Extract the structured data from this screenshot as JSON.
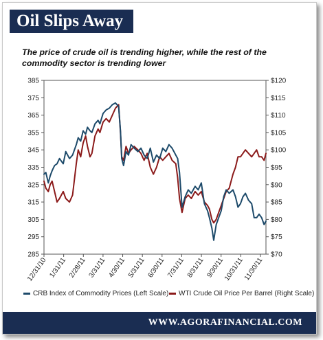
{
  "header": {
    "title": "Oil Slips Away"
  },
  "subtitle": "The price of crude oil is trending higher, while the rest of the commodity sector is trending lower",
  "footer": {
    "site": "WWW.AGORAFINANCIAL.COM"
  },
  "colors": {
    "brand_navy": "#1a2d52",
    "crb": "#1d4a6a",
    "wti": "#8b1a1a"
  },
  "chart_data": {
    "type": "line",
    "x_tick_labels": [
      "12/31/10",
      "1/31/11",
      "2/28/11",
      "3/31/11",
      "4/30/11",
      "5/31/11",
      "6/30/11",
      "7/31/11",
      "8/31/11",
      "9/30/11",
      "10/31/11",
      "11/30/11"
    ],
    "xlim": [
      "2010-12-31",
      "2011-12-23"
    ],
    "y_left_ticks": [
      "385",
      "375",
      "365",
      "355",
      "345",
      "335",
      "325",
      "315",
      "305",
      "295",
      "285"
    ],
    "y_right_ticks": [
      "$120",
      "$115",
      "$110",
      "$105",
      "$100",
      "$95",
      "$90",
      "$85",
      "$80",
      "$75",
      "$70"
    ],
    "y_left_range": [
      285,
      385
    ],
    "y_right_range": [
      70,
      120
    ],
    "grid": false,
    "legend_position": "bottom",
    "series": [
      {
        "name": "CRB Index of Commodity Prices (Left Scale)",
        "axis": "left",
        "color": "#1d4a6a",
        "x": [
          "2010-12-31",
          "2011-01-03",
          "2011-01-07",
          "2011-01-10",
          "2011-01-13",
          "2011-01-17",
          "2011-01-21",
          "2011-01-25",
          "2011-01-31",
          "2011-02-04",
          "2011-02-10",
          "2011-02-15",
          "2011-02-21",
          "2011-02-24",
          "2011-02-28",
          "2011-03-04",
          "2011-03-08",
          "2011-03-11",
          "2011-03-15",
          "2011-03-18",
          "2011-03-23",
          "2011-03-28",
          "2011-03-31",
          "2011-04-05",
          "2011-04-10",
          "2011-04-15",
          "2011-04-20",
          "2011-04-25",
          "2011-04-30",
          "2011-05-03",
          "2011-05-05",
          "2011-05-08",
          "2011-05-12",
          "2011-05-16",
          "2011-05-20",
          "2011-05-25",
          "2011-05-31",
          "2011-06-05",
          "2011-06-10",
          "2011-06-15",
          "2011-06-20",
          "2011-06-25",
          "2011-06-30",
          "2011-07-05",
          "2011-07-10",
          "2011-07-15",
          "2011-07-20",
          "2011-07-25",
          "2011-07-31",
          "2011-08-03",
          "2011-08-06",
          "2011-08-10",
          "2011-08-15",
          "2011-08-20",
          "2011-08-25",
          "2011-08-31",
          "2011-09-05",
          "2011-09-10",
          "2011-09-15",
          "2011-09-20",
          "2011-09-23",
          "2011-09-27",
          "2011-09-30",
          "2011-10-04",
          "2011-10-08",
          "2011-10-12",
          "2011-10-16",
          "2011-10-20",
          "2011-10-25",
          "2011-10-31",
          "2011-11-04",
          "2011-11-08",
          "2011-11-12",
          "2011-11-16",
          "2011-11-20",
          "2011-11-25",
          "2011-11-30",
          "2011-12-04",
          "2011-12-08",
          "2011-12-12",
          "2011-12-16",
          "2011-12-20",
          "2011-12-23"
        ],
        "values": [
          331,
          332,
          326,
          330,
          333,
          336,
          337,
          340,
          337,
          344,
          340,
          342,
          348,
          352,
          350,
          356,
          354,
          358,
          356,
          355,
          360,
          362,
          360,
          366,
          368,
          369,
          371,
          372,
          370,
          356,
          340,
          336,
          344,
          342,
          348,
          346,
          344,
          346,
          342,
          340,
          346,
          338,
          342,
          340,
          346,
          344,
          348,
          346,
          342,
          340,
          332,
          312,
          318,
          322,
          320,
          324,
          322,
          326,
          314,
          310,
          306,
          300,
          293,
          302,
          306,
          310,
          318,
          322,
          320,
          322,
          318,
          312,
          314,
          318,
          320,
          316,
          314,
          306,
          306,
          308,
          306,
          302,
          304
        ]
      },
      {
        "name": "WTI Crude Oil Price Per Barrel (Right Scale)",
        "axis": "right",
        "color": "#8b1a1a",
        "x": [
          "2010-12-31",
          "2011-01-03",
          "2011-01-07",
          "2011-01-10",
          "2011-01-13",
          "2011-01-17",
          "2011-01-21",
          "2011-01-25",
          "2011-01-31",
          "2011-02-04",
          "2011-02-10",
          "2011-02-15",
          "2011-02-21",
          "2011-02-24",
          "2011-02-28",
          "2011-03-04",
          "2011-03-08",
          "2011-03-11",
          "2011-03-15",
          "2011-03-18",
          "2011-03-23",
          "2011-03-28",
          "2011-03-31",
          "2011-04-05",
          "2011-04-10",
          "2011-04-15",
          "2011-04-20",
          "2011-04-25",
          "2011-04-30",
          "2011-05-03",
          "2011-05-05",
          "2011-05-08",
          "2011-05-12",
          "2011-05-16",
          "2011-05-20",
          "2011-05-25",
          "2011-05-31",
          "2011-06-05",
          "2011-06-10",
          "2011-06-15",
          "2011-06-20",
          "2011-06-25",
          "2011-06-30",
          "2011-07-05",
          "2011-07-10",
          "2011-07-15",
          "2011-07-20",
          "2011-07-25",
          "2011-07-31",
          "2011-08-03",
          "2011-08-06",
          "2011-08-10",
          "2011-08-15",
          "2011-08-20",
          "2011-08-25",
          "2011-08-31",
          "2011-09-05",
          "2011-09-10",
          "2011-09-15",
          "2011-09-20",
          "2011-09-23",
          "2011-09-27",
          "2011-09-30",
          "2011-10-04",
          "2011-10-08",
          "2011-10-12",
          "2011-10-16",
          "2011-10-20",
          "2011-10-25",
          "2011-10-31",
          "2011-11-04",
          "2011-11-08",
          "2011-11-12",
          "2011-11-16",
          "2011-11-20",
          "2011-11-25",
          "2011-11-30",
          "2011-12-04",
          "2011-12-08",
          "2011-12-12",
          "2011-12-16",
          "2011-12-20",
          "2011-12-23"
        ],
        "values": [
          91,
          89,
          88,
          90,
          91,
          88,
          85,
          86,
          88,
          86,
          85,
          87,
          96,
          100,
          98,
          102,
          104,
          101,
          98,
          99,
          104,
          106,
          105,
          108,
          109,
          108,
          110,
          112,
          113,
          105,
          98,
          97,
          101,
          99,
          100,
          101,
          100,
          99,
          97,
          99,
          95,
          93,
          95,
          98,
          97,
          98,
          99,
          97,
          96,
          92,
          86,
          82,
          86,
          87,
          86,
          88,
          87,
          88,
          85,
          84,
          83,
          80,
          79,
          80,
          82,
          84,
          86,
          88,
          89,
          93,
          95,
          98,
          98,
          99,
          100,
          99,
          98,
          99,
          100,
          98,
          98,
          97,
          99
        ]
      }
    ]
  }
}
